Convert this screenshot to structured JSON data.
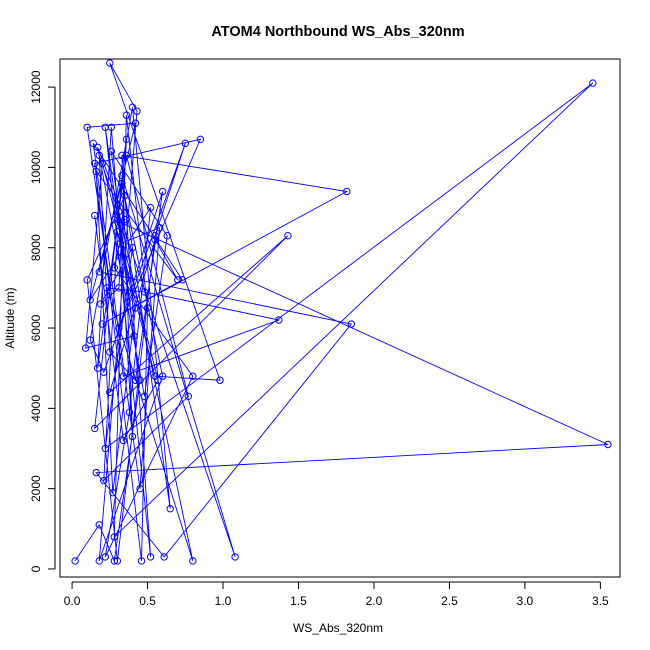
{
  "chart_data": {
    "type": "line",
    "title": "ATOM4 Northbound WS_Abs_320nm",
    "xlabel": "WS_Abs_320nm",
    "ylabel": "Altitude (m)",
    "xlim": [
      -0.08,
      3.63
    ],
    "ylim": [
      -200,
      12700
    ],
    "xticks": [
      "0.0",
      "0.5",
      "1.0",
      "1.5",
      "2.0",
      "2.5",
      "3.0",
      "3.5"
    ],
    "yticks": [
      "0",
      "2000",
      "4000",
      "6000",
      "8000",
      "10000",
      "12000"
    ],
    "grid": false,
    "legend": "none",
    "series": [
      {
        "color": "#0000ff",
        "marker": "open-circle",
        "x": [
          0.02,
          0.18,
          0.28,
          0.45,
          0.22,
          0.52,
          0.35,
          0.1,
          0.3,
          0.55,
          0.75,
          0.21,
          0.12,
          0.4,
          0.65,
          0.33,
          1.08,
          0.18,
          0.25,
          0.42,
          0.6,
          0.31,
          0.85,
          0.15,
          0.46,
          0.5,
          0.36,
          0.28,
          3.45,
          0.22,
          0.4,
          0.19,
          0.31,
          0.36,
          0.15,
          1.43,
          0.25,
          0.55,
          0.7,
          0.16,
          0.27,
          0.42,
          0.28,
          3.55,
          0.16,
          0.61,
          1.85,
          0.18,
          0.42,
          0.1,
          0.34,
          1.37,
          0.48,
          0.23,
          0.8,
          0.31,
          0.4,
          0.33,
          1.82,
          0.2,
          0.73,
          0.14,
          0.45,
          0.58,
          0.32,
          0.26,
          0.17,
          0.36,
          0.77,
          0.21,
          0.3,
          0.55,
          0.98,
          0.25,
          0.43,
          0.18,
          0.6,
          0.33,
          0.12,
          0.52,
          0.38,
          0.22,
          0.8,
          0.28,
          0.35,
          0.17,
          0.48,
          0.63,
          0.26,
          0.41,
          0.09,
          0.2,
          0.57,
          0.34,
          0.15
        ],
        "y": [
          200,
          1100,
          200,
          4700,
          11000,
          300,
          9300,
          7200,
          200,
          8300,
          10600,
          4900,
          5700,
          11500,
          1500,
          9800,
          300,
          10300,
          5400,
          4700,
          9400,
          6000,
          10700,
          10100,
          200,
          6500,
          11300,
          800,
          12100,
          3000,
          8000,
          6600,
          7000,
          10700,
          3500,
          8300,
          4400,
          8200,
          7200,
          9900,
          1900,
          6500,
          8700,
          3100,
          2400,
          300,
          6100,
          7400,
          11100,
          11000,
          4800,
          6200,
          6900,
          7000,
          200,
          8900,
          3300,
          10300,
          9400,
          6100,
          7200,
          10600,
          2000,
          8500,
          8100,
          11000,
          5000,
          10300,
          4300,
          2200,
          8400,
          4800,
          4700,
          12600,
          11400,
          200,
          4800,
          9600,
          6700,
          9000,
          3900,
          300,
          4800,
          7500,
          8700,
          10500,
          4300,
          8300,
          10400,
          5800,
          5500,
          10100,
          4700,
          3200,
          8800
        ]
      }
    ]
  }
}
